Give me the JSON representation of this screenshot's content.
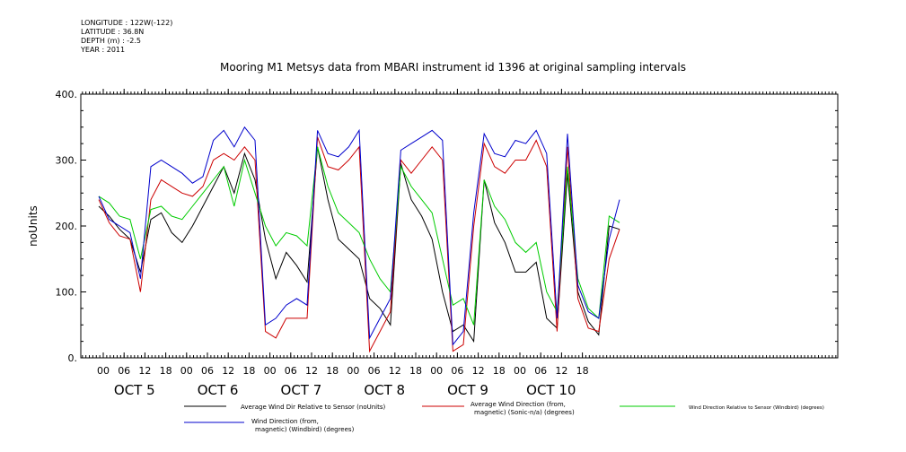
{
  "meta": {
    "longitude": "LONGITUDE : 122W(-122)",
    "latitude": "LATITUDE : 36.8N",
    "depth": "DEPTH (m) : -2.5",
    "year": "YEAR : 2011"
  },
  "chart_data": {
    "type": "line",
    "title": "Mooring M1 Metsys data from MBARI instrument id 1396 at original sampling intervals",
    "ylabel": "noUnits",
    "xlabel": "",
    "ylim": [
      0,
      400
    ],
    "xlim_hours": [
      0,
      150
    ],
    "yticks": [
      "0.",
      "100.",
      "200.",
      "300.",
      "400."
    ],
    "hour_ticks": [
      "00",
      "06",
      "12",
      "18",
      "00",
      "06",
      "12",
      "18",
      "00",
      "06",
      "12",
      "18",
      "00",
      "06",
      "12",
      "18",
      "00",
      "06",
      "12",
      "18",
      "00",
      "06",
      "12",
      "18"
    ],
    "day_labels": [
      "OCT  5",
      "OCT  6",
      "OCT  7",
      "OCT  8",
      "OCT  9",
      "OCT 10"
    ],
    "grid": false,
    "legend_placement": "bottom",
    "series": [
      {
        "name": "Average Wind Dir Relative to Sensor (noUnits)",
        "color": "#000000",
        "x": [
          0,
          3,
          6,
          9,
          12,
          15,
          18,
          21,
          24,
          27,
          30,
          33,
          36,
          39,
          42,
          45,
          48,
          51,
          54,
          57,
          60,
          63,
          66,
          69,
          72,
          75,
          78,
          81,
          84,
          87,
          90,
          93,
          96,
          99,
          102,
          105,
          108,
          111,
          114,
          117,
          120,
          123,
          126,
          129,
          132,
          135,
          138,
          141,
          144,
          147,
          150
        ],
        "values": [
          230,
          215,
          195,
          180,
          130,
          210,
          220,
          190,
          175,
          200,
          230,
          260,
          290,
          250,
          310,
          270,
          180,
          120,
          160,
          140,
          115,
          320,
          240,
          180,
          165,
          150,
          90,
          75,
          50,
          295,
          240,
          215,
          180,
          100,
          40,
          50,
          25,
          270,
          205,
          175,
          130,
          130,
          145,
          60,
          45,
          280,
          100,
          55,
          35,
          200,
          195
        ]
      },
      {
        "name": "Average Wind Direction (from, magnetic) (Sonic-n/a) (degrees)",
        "color": "#cc0000",
        "x": [
          0,
          3,
          6,
          9,
          12,
          15,
          18,
          21,
          24,
          27,
          30,
          33,
          36,
          39,
          42,
          45,
          48,
          51,
          54,
          57,
          60,
          63,
          66,
          69,
          72,
          75,
          78,
          81,
          84,
          87,
          90,
          93,
          96,
          99,
          102,
          105,
          108,
          111,
          114,
          117,
          120,
          123,
          126,
          129,
          132,
          135,
          138,
          141,
          144,
          147,
          150
        ],
        "values": [
          240,
          205,
          185,
          180,
          100,
          240,
          270,
          260,
          250,
          245,
          260,
          300,
          310,
          300,
          320,
          300,
          40,
          30,
          60,
          60,
          60,
          335,
          290,
          285,
          300,
          320,
          10,
          40,
          70,
          300,
          280,
          300,
          320,
          300,
          10,
          20,
          200,
          325,
          290,
          280,
          300,
          300,
          330,
          290,
          40,
          320,
          90,
          45,
          40,
          150,
          195
        ]
      },
      {
        "name": "Wind Direction Relative to Sensor (Windbird) (degrees)",
        "color": "#00cc00",
        "x": [
          0,
          3,
          6,
          9,
          12,
          15,
          18,
          21,
          24,
          27,
          30,
          33,
          36,
          39,
          42,
          45,
          48,
          51,
          54,
          57,
          60,
          63,
          66,
          69,
          72,
          75,
          78,
          81,
          84,
          87,
          90,
          93,
          96,
          99,
          102,
          105,
          108,
          111,
          114,
          117,
          120,
          123,
          126,
          129,
          132,
          135,
          138,
          141,
          144,
          147,
          150
        ],
        "values": [
          245,
          235,
          215,
          210,
          150,
          225,
          230,
          215,
          210,
          230,
          250,
          270,
          290,
          230,
          300,
          250,
          200,
          170,
          190,
          185,
          170,
          320,
          260,
          220,
          205,
          190,
          150,
          120,
          100,
          290,
          260,
          240,
          220,
          150,
          80,
          90,
          50,
          270,
          230,
          210,
          175,
          160,
          175,
          100,
          70,
          290,
          120,
          75,
          60,
          215,
          205
        ]
      },
      {
        "name": "Wind Direction (from, magnetic) (Windbird) (degrees)",
        "color": "#0000cc",
        "x": [
          0,
          3,
          6,
          9,
          12,
          15,
          18,
          21,
          24,
          27,
          30,
          33,
          36,
          39,
          42,
          45,
          48,
          51,
          54,
          57,
          60,
          63,
          66,
          69,
          72,
          75,
          78,
          81,
          84,
          87,
          90,
          93,
          96,
          99,
          102,
          105,
          108,
          111,
          114,
          117,
          120,
          123,
          126,
          129,
          132,
          135,
          138,
          141,
          144,
          147,
          150
        ],
        "values": [
          245,
          210,
          200,
          190,
          120,
          290,
          300,
          290,
          280,
          265,
          275,
          330,
          345,
          320,
          350,
          330,
          50,
          60,
          80,
          90,
          80,
          345,
          310,
          305,
          320,
          345,
          30,
          60,
          90,
          315,
          325,
          335,
          345,
          330,
          20,
          40,
          220,
          340,
          310,
          305,
          330,
          325,
          345,
          310,
          60,
          340,
          110,
          70,
          60,
          180,
          240
        ]
      }
    ]
  },
  "legend": {
    "item1": "Average Wind Dir Relative to Sensor (noUnits)",
    "item2_line1": "Average Wind Direction (from,",
    "item2_line2": "magnetic) (Sonic-n/a) (degrees)",
    "item3": "Wind Direction Relative to Sensor (Windbird) (degrees)",
    "item4_line1": "Wind Direction (from,",
    "item4_line2": "magnetic) (Windbird) (degrees)"
  }
}
